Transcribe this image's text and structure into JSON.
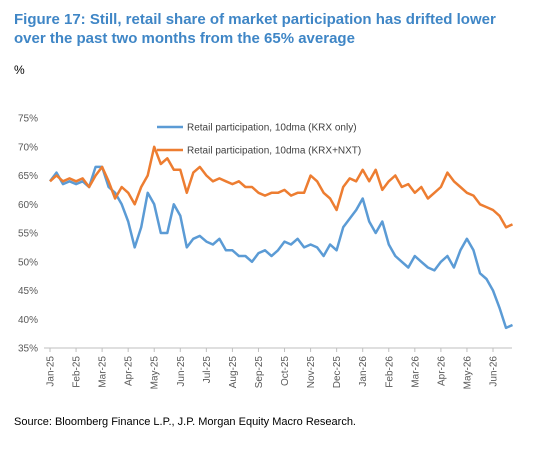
{
  "chart_data": {
    "type": "line",
    "title": "Figure 17: Still, retail share of market participation has drifted lower over the past two months from the 65% average",
    "ylabel": "%",
    "source": "Source: Bloomberg Finance L.P., J.P. Morgan Equity Macro Research.",
    "categories": [
      "Jan-25",
      null,
      null,
      null,
      "Feb-25",
      null,
      null,
      null,
      "Mar-25",
      null,
      null,
      null,
      "Apr-25",
      null,
      null,
      null,
      "May-25",
      null,
      null,
      null,
      "Jun-25",
      null,
      null,
      null,
      "Jul-25",
      null,
      null,
      null,
      "Aug-25",
      null,
      null,
      null,
      "Sep-25",
      null,
      null,
      null,
      "Oct-25",
      null,
      null,
      null,
      "Nov-25",
      null,
      null,
      null,
      "Dec-25",
      null,
      null,
      null,
      "Jan-26",
      null,
      null,
      null,
      "Feb-26",
      null,
      null,
      null,
      "Mar-26",
      null,
      null,
      null,
      "Apr-26",
      null,
      null,
      null,
      "May-26",
      null,
      null,
      null,
      "Jun-26",
      null,
      null,
      null
    ],
    "series": [
      {
        "name": "Retail participation, 10dma (KRX only)",
        "color": "#5b9bd5",
        "values": [
          64,
          65.5,
          63.5,
          64,
          63.5,
          64,
          63,
          66.5,
          66.5,
          63,
          62,
          60,
          57,
          52.5,
          56,
          62,
          60,
          55,
          55,
          60,
          58,
          52.5,
          54,
          54.5,
          53.5,
          53,
          54,
          52,
          52,
          51,
          51,
          50,
          51.5,
          52,
          51,
          52,
          53.5,
          53,
          54,
          52.5,
          53,
          52.5,
          51,
          53,
          52,
          56,
          57.5,
          59,
          61,
          57,
          55,
          57,
          53,
          51,
          50,
          49,
          51,
          50,
          49,
          48.5,
          50,
          51,
          49,
          52,
          54,
          52,
          48,
          47,
          45,
          42,
          38.5,
          39
        ]
      },
      {
        "name": "Retail participation, 10dma (KRX+NXT)",
        "color": "#ed7d31",
        "values": [
          64,
          65,
          64,
          64.5,
          64,
          64.5,
          63,
          65,
          66.5,
          64,
          61,
          63,
          62,
          60,
          63,
          65,
          70,
          67,
          68,
          66,
          66,
          62,
          65.5,
          66.5,
          65,
          64,
          64.5,
          64,
          63.5,
          64,
          63,
          63,
          62,
          61.5,
          62,
          62,
          62.5,
          61.5,
          62,
          62,
          65,
          64,
          62,
          61,
          59,
          63,
          64.5,
          64,
          66,
          64,
          66,
          62.5,
          64,
          65,
          63,
          63.5,
          62,
          63,
          61,
          62,
          63,
          65.5,
          64,
          63,
          62,
          61.5,
          60,
          59.5,
          59,
          58,
          56,
          56.5
        ]
      }
    ],
    "ylim": [
      35,
      75
    ],
    "yticks": [
      {
        "value": 35,
        "label": "35%"
      },
      {
        "value": 40,
        "label": "40%"
      },
      {
        "value": 45,
        "label": "45%"
      },
      {
        "value": 50,
        "label": "50%"
      },
      {
        "value": 55,
        "label": "55%"
      },
      {
        "value": 60,
        "label": "60%"
      },
      {
        "value": 65,
        "label": "65%"
      },
      {
        "value": 70,
        "label": "70%"
      },
      {
        "value": 75,
        "label": "75%"
      }
    ],
    "grid": false
  }
}
